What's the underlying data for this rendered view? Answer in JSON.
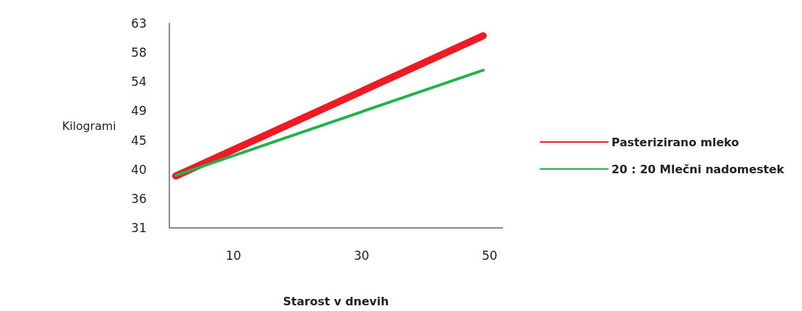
{
  "chart_data": {
    "type": "line",
    "xlabel": "Starost v dnevih",
    "ylabel": "Kilogrami",
    "x": [
      1,
      49
    ],
    "series": [
      {
        "name": "Pasterizirano mleko",
        "color": "#ed1c24",
        "values": [
          39.5,
          61.1
        ]
      },
      {
        "name": "20 : 20 Mlečni nadomestek",
        "color": "#22b14c",
        "values": [
          39.6,
          55.8
        ]
      }
    ],
    "xlim": [
      0,
      52
    ],
    "xticks": [
      10,
      30,
      50
    ],
    "ylim": [
      31.5,
      63
    ],
    "yticks": [
      {
        "value": 31.5,
        "label": "31"
      },
      {
        "value": 36,
        "label": "36"
      },
      {
        "value": 40.5,
        "label": "40"
      },
      {
        "value": 45,
        "label": "45"
      },
      {
        "value": 49.5,
        "label": "49"
      },
      {
        "value": 54,
        "label": "54"
      },
      {
        "value": 58.5,
        "label": "58"
      },
      {
        "value": 63,
        "label": "63"
      }
    ],
    "grid": false,
    "legend": "right",
    "marker": "none",
    "line_style": "solid"
  }
}
